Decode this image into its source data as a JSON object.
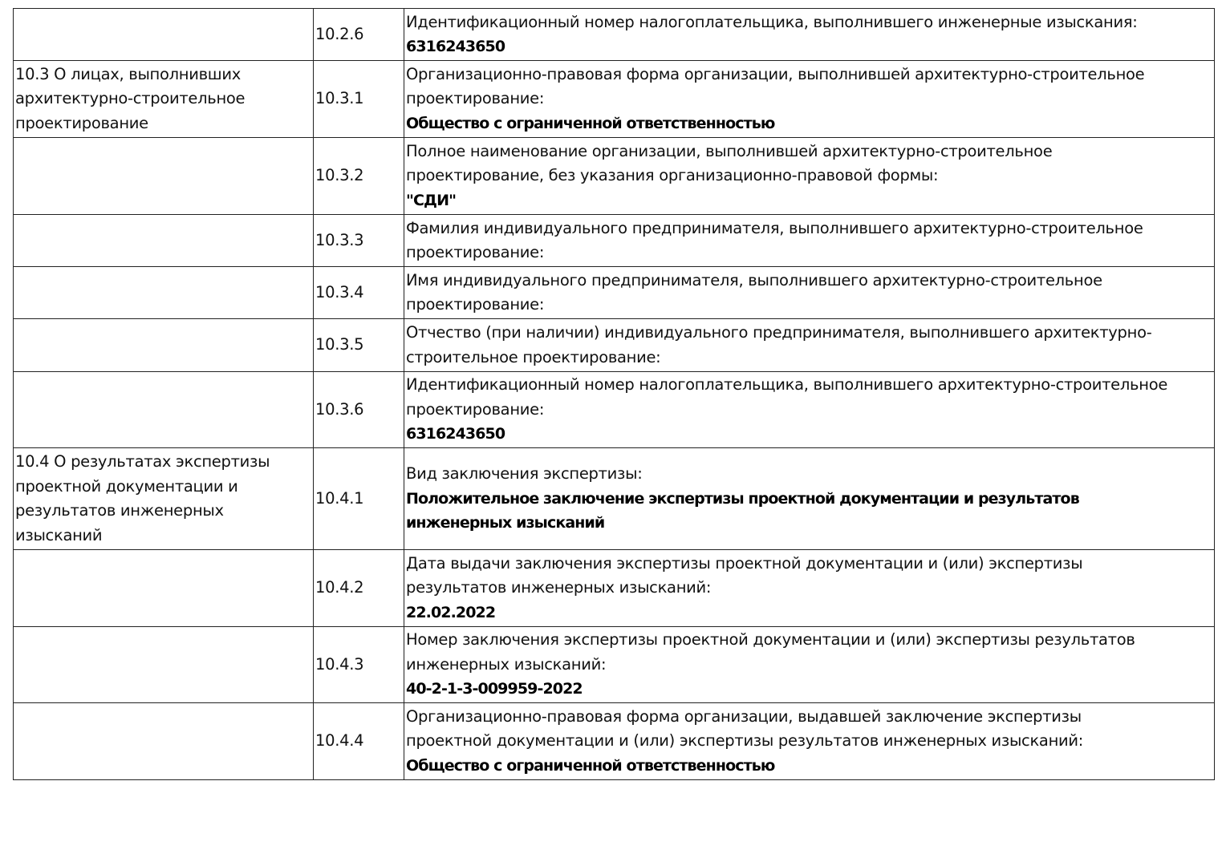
{
  "rows": [
    {
      "section": [],
      "code": "10.2.6",
      "label": [
        "Идентификационный номер налогоплательщика, выполнившего инженерные изыскания:"
      ],
      "value": [
        "6316243650"
      ]
    },
    {
      "section": [
        "10.3 О лицах, выполнивших",
        "архитектурно-строительное",
        "проектирование"
      ],
      "code": "10.3.1",
      "label": [
        "Организационно-правовая форма организации, выполнившей архитектурно-строительное",
        "проектирование:"
      ],
      "value": [
        "Общество с ограниченной ответственностью"
      ]
    },
    {
      "section": [],
      "code": "10.3.2",
      "label": [
        "Полное наименование организации, выполнившей архитектурно-строительное",
        "проектирование, без указания организационно-правовой формы:"
      ],
      "value": [
        "\"СДИ\""
      ]
    },
    {
      "section": [],
      "code": "10.3.3",
      "label": [
        "Фамилия индивидуального предпринимателя, выполнившего архитектурно-строительное",
        "проектирование:"
      ],
      "value": []
    },
    {
      "section": [],
      "code": "10.3.4",
      "label": [
        "Имя индивидуального предпринимателя, выполнившего архитектурно-строительное",
        "проектирование:"
      ],
      "value": []
    },
    {
      "section": [],
      "code": "10.3.5",
      "label": [
        "Отчество (при наличии) индивидуального предпринимателя, выполнившего архитектурно-",
        "строительное проектирование:"
      ],
      "value": []
    },
    {
      "section": [],
      "code": "10.3.6",
      "label": [
        "Идентификационный номер налогоплательщика, выполнившего архитектурно-строительное",
        "проектирование:"
      ],
      "value": [
        "6316243650"
      ]
    },
    {
      "section": [
        "10.4 О результатах экспертизы",
        "проектной документации и",
        "результатов инженерных",
        "изысканий"
      ],
      "code": "10.4.1",
      "label": [
        "Вид заключения экспертизы:"
      ],
      "value": [
        "Положительное заключение экспертизы проектной документации и результатов",
        "инженерных изысканий"
      ]
    },
    {
      "section": [],
      "code": "10.4.2",
      "label": [
        "Дата выдачи заключения экспертизы проектной документации и (или) экспертизы",
        "результатов инженерных изысканий:"
      ],
      "value": [
        "22.02.2022"
      ]
    },
    {
      "section": [],
      "code": "10.4.3",
      "label": [
        "Номер заключения экспертизы проектной документации и (или) экспертизы результатов",
        "инженерных изысканий:"
      ],
      "value": [
        "40-2-1-3-009959-2022"
      ]
    },
    {
      "section": [],
      "code": "10.4.4",
      "label": [
        "Организационно-правовая форма организации, выдавшей заключение экспертизы",
        "проектной документации и (или) экспертизы результатов инженерных изысканий:"
      ],
      "value": [
        "Общество с ограниченной ответственностью"
      ]
    }
  ]
}
